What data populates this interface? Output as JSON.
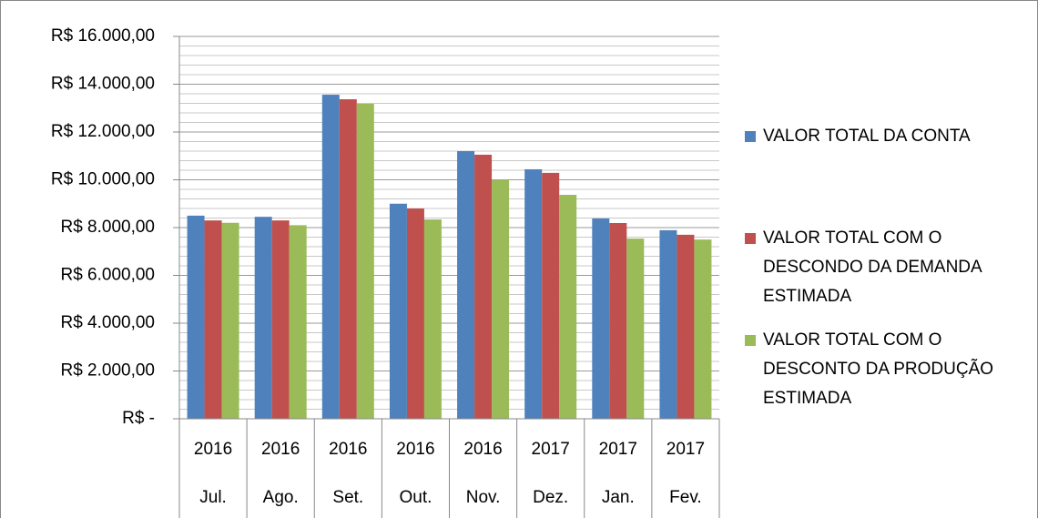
{
  "chart_data": {
    "type": "bar",
    "categories": [
      "Jul.",
      "Ago.",
      "Set.",
      "Out.",
      "Nov.",
      "Dez.",
      "Jan.",
      "Fev."
    ],
    "years": [
      "2016",
      "2016",
      "2016",
      "2016",
      "2016",
      "2017",
      "2017",
      "2017"
    ],
    "series": [
      {
        "name": "VALOR TOTAL DA CONTA",
        "color": "#4f81bd",
        "values": [
          8500,
          8450,
          13560,
          9000,
          11200,
          10440,
          8380,
          7890
        ]
      },
      {
        "name": "VALOR TOTAL COM O DESCONDO DA DEMANDA ESTIMADA",
        "color": "#c0504d",
        "values": [
          8300,
          8300,
          13370,
          8800,
          11050,
          10290,
          8190,
          7700
        ]
      },
      {
        "name": "VALOR TOTAL COM O DESCONTO DA PRODUÇÃO ESTIMADA",
        "color": "#9bbb59",
        "values": [
          8200,
          8100,
          13180,
          8340,
          10000,
          9370,
          7540,
          7500
        ]
      }
    ],
    "ylim": [
      0,
      16000
    ],
    "yticks": [
      {
        "value": 0,
        "label": "R$ -"
      },
      {
        "value": 2000,
        "label": "R$ 2.000,00"
      },
      {
        "value": 4000,
        "label": "R$ 4.000,00"
      },
      {
        "value": 6000,
        "label": "R$ 6.000,00"
      },
      {
        "value": 8000,
        "label": "R$ 8.000,00"
      },
      {
        "value": 10000,
        "label": "R$ 10.000,00"
      },
      {
        "value": 12000,
        "label": "R$ 12.000,00"
      },
      {
        "value": 14000,
        "label": "R$ 14.000,00"
      },
      {
        "value": 16000,
        "label": "R$ 16.000,00"
      }
    ],
    "grid": true,
    "minor_grid": true,
    "legend": "right"
  }
}
